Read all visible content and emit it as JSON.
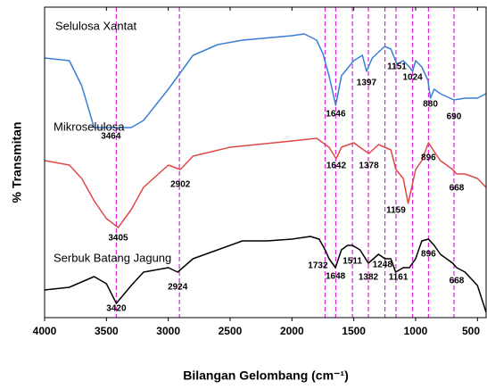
{
  "chart_data": {
    "type": "line",
    "xlabel": "Bilangan Gelombang (cm⁻¹)",
    "ylabel": "% Transmitan",
    "xlim": [
      4000,
      430
    ],
    "xticks": [
      4000,
      3500,
      3000,
      2500,
      2000,
      1500,
      1000,
      500
    ],
    "ylim": [
      0,
      348
    ],
    "reference_lines": {
      "color": "#e020e0",
      "x": [
        3420,
        2910,
        1732,
        1646,
        1511,
        1382,
        1248,
        1159,
        1024,
        896,
        690
      ]
    },
    "series": [
      {
        "name": "Selulosa Xantat",
        "color": "#3a7fd5",
        "x": [
          4000,
          3800,
          3700,
          3600,
          3464,
          3300,
          3200,
          3000,
          2800,
          2600,
          2400,
          2000,
          1900,
          1800,
          1750,
          1700,
          1646,
          1600,
          1500,
          1430,
          1397,
          1350,
          1250,
          1200,
          1151,
          1100,
          1050,
          1024,
          1000,
          950,
          900,
          880,
          850,
          800,
          690,
          600,
          500,
          430
        ],
        "values": [
          291,
          288,
          260,
          213,
          213,
          213,
          221,
          256,
          294,
          306,
          311,
          316,
          318,
          311,
          296,
          271,
          238,
          271,
          288,
          294,
          276,
          291,
          304,
          301,
          284,
          288,
          281,
          276,
          288,
          281,
          266,
          246,
          256,
          251,
          244,
          246,
          246,
          251
        ]
      },
      {
        "name": "Mikroselulosa",
        "color": "#e04848",
        "x": [
          4000,
          3800,
          3700,
          3600,
          3500,
          3405,
          3300,
          3200,
          3000,
          2902,
          2800,
          2500,
          2000,
          1800,
          1700,
          1642,
          1600,
          1500,
          1400,
          1378,
          1300,
          1200,
          1159,
          1100,
          1060,
          1000,
          950,
          896,
          850,
          800,
          700,
          668,
          600,
          500,
          430
        ],
        "values": [
          176,
          171,
          156,
          131,
          111,
          101,
          121,
          146,
          171,
          166,
          181,
          191,
          198,
          201,
          191,
          178,
          191,
          196,
          186,
          184,
          194,
          188,
          166,
          156,
          128,
          166,
          176,
          196,
          186,
          176,
          166,
          161,
          161,
          156,
          146
        ]
      },
      {
        "name": "Serbuk Batang Jagung",
        "color": "#000000",
        "x": [
          4000,
          3800,
          3600,
          3500,
          3420,
          3300,
          3200,
          3000,
          2924,
          2800,
          2600,
          2400,
          2200,
          2000,
          1850,
          1780,
          1732,
          1700,
          1648,
          1600,
          1550,
          1511,
          1450,
          1382,
          1300,
          1248,
          1200,
          1161,
          1100,
          1050,
          1000,
          950,
          896,
          850,
          800,
          700,
          668,
          600,
          500,
          430
        ],
        "values": [
          31,
          34,
          46,
          38,
          16,
          36,
          51,
          56,
          51,
          66,
          76,
          86,
          86,
          88,
          91,
          88,
          76,
          66,
          56,
          76,
          81,
          81,
          76,
          61,
          71,
          66,
          66,
          51,
          56,
          56,
          66,
          86,
          88,
          81,
          71,
          61,
          56,
          51,
          36,
          6
        ]
      }
    ],
    "annotations": [
      {
        "text": "3464",
        "x": 3464,
        "y": 203
      },
      {
        "text": "1646",
        "x": 1646,
        "y": 228
      },
      {
        "text": "1397",
        "x": 1397,
        "y": 263
      },
      {
        "text": "1151",
        "x": 1151,
        "y": 281
      },
      {
        "text": "1024",
        "x": 1024,
        "y": 269
      },
      {
        "text": "880",
        "x": 880,
        "y": 239
      },
      {
        "text": "690",
        "x": 690,
        "y": 225
      },
      {
        "text": "2902",
        "x": 2902,
        "y": 149
      },
      {
        "text": "3405",
        "x": 3405,
        "y": 89
      },
      {
        "text": "1642",
        "x": 1642,
        "y": 170
      },
      {
        "text": "1378",
        "x": 1378,
        "y": 170
      },
      {
        "text": "896",
        "x": 896,
        "y": 179
      },
      {
        "text": "1159",
        "x": 1159,
        "y": 120
      },
      {
        "text": "668",
        "x": 668,
        "y": 145
      },
      {
        "text": "3420",
        "x": 3420,
        "y": 10
      },
      {
        "text": "2924",
        "x": 2924,
        "y": 34
      },
      {
        "text": "1732",
        "x": 1790,
        "y": 58
      },
      {
        "text": "1648",
        "x": 1648,
        "y": 46
      },
      {
        "text": "1511",
        "x": 1511,
        "y": 63
      },
      {
        "text": "1382",
        "x": 1382,
        "y": 45
      },
      {
        "text": "1248",
        "x": 1268,
        "y": 59
      },
      {
        "text": "1161",
        "x": 1140,
        "y": 45
      },
      {
        "text": "896",
        "x": 896,
        "y": 71
      },
      {
        "text": "668",
        "x": 668,
        "y": 41
      }
    ]
  }
}
